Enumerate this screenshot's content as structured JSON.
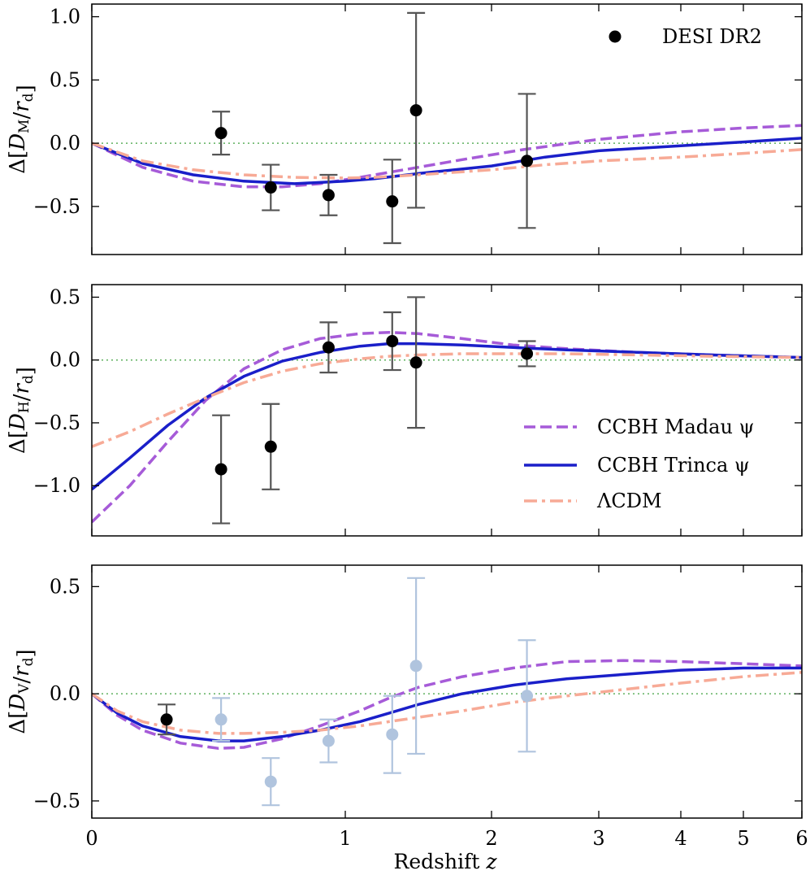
{
  "chart_data": [
    {
      "type": "line",
      "panel": "top",
      "ylabel": {
        "prefix": "Δ",
        "open": "[",
        "var": "D",
        "sub": "M",
        "slash": "/",
        "var2": "r",
        "sub2": "d",
        "close": "]"
      },
      "ylim": [
        -0.88,
        1.1
      ],
      "yticks": [
        1.0,
        0.5,
        0.0,
        -0.5
      ],
      "ytick_labels": [
        "1.0",
        "0.5",
        "0.0",
        "−0.5"
      ],
      "legend": {
        "position": "top-right",
        "entries": [
          {
            "label": "DESI DR2",
            "kind": "marker",
            "color": "#000000"
          }
        ]
      },
      "points": [
        {
          "z": 0.51,
          "y": 0.08,
          "err": 0.17,
          "color": "#000000"
        },
        {
          "z": 0.706,
          "y": -0.35,
          "err": 0.18,
          "color": "#000000"
        },
        {
          "z": 0.934,
          "y": -0.41,
          "err": 0.16,
          "color": "#000000"
        },
        {
          "z": 1.321,
          "y": -0.46,
          "err": 0.33,
          "color": "#000000"
        },
        {
          "z": 1.484,
          "y": 0.26,
          "err": 0.77,
          "color": "#000000"
        },
        {
          "z": 2.33,
          "y": -0.14,
          "err": 0.53,
          "color": "#000000"
        }
      ],
      "series": [
        {
          "name": "CCBH Madau ψ",
          "style": "dashed",
          "color": "#a65bd8",
          "z": [
            0,
            0.2,
            0.4,
            0.6,
            0.75,
            0.9,
            1.1,
            1.4,
            1.8,
            2.3,
            3,
            4,
            5,
            6
          ],
          "values": [
            0,
            -0.19,
            -0.3,
            -0.345,
            -0.345,
            -0.32,
            -0.27,
            -0.21,
            -0.13,
            -0.05,
            0.03,
            0.09,
            0.12,
            0.14
          ]
        },
        {
          "name": "CCBH Trinca ψ",
          "style": "solid",
          "color": "#1a1fc9",
          "z": [
            0,
            0.2,
            0.4,
            0.6,
            0.8,
            1.0,
            1.2,
            1.5,
            2,
            2.5,
            3,
            4,
            5,
            6
          ],
          "values": [
            0,
            -0.16,
            -0.25,
            -0.3,
            -0.32,
            -0.3,
            -0.28,
            -0.24,
            -0.18,
            -0.11,
            -0.06,
            -0.02,
            0.01,
            0.04
          ]
        },
        {
          "name": "ΛCDM",
          "style": "dashdot",
          "color": "#f7aa96",
          "z": [
            0,
            0.2,
            0.4,
            0.6,
            0.8,
            1.0,
            1.2,
            1.5,
            2,
            2.5,
            3,
            4,
            5,
            6
          ],
          "values": [
            0,
            -0.14,
            -0.21,
            -0.25,
            -0.27,
            -0.275,
            -0.27,
            -0.25,
            -0.21,
            -0.17,
            -0.14,
            -0.11,
            -0.08,
            -0.05
          ]
        },
        {
          "name": "zero",
          "style": "dotted",
          "color": "#5fb05f",
          "z": [
            0,
            6
          ],
          "values": [
            0,
            0
          ]
        }
      ]
    },
    {
      "type": "line",
      "panel": "middle",
      "ylabel": {
        "prefix": "Δ",
        "open": "[",
        "var": "D",
        "sub": "H",
        "slash": "/",
        "var2": "r",
        "sub2": "d",
        "close": "]"
      },
      "ylim": [
        -1.4,
        0.6
      ],
      "yticks": [
        0.5,
        0.0,
        -0.5,
        -1.0
      ],
      "ytick_labels": [
        "0.5",
        "0.0",
        "−0.5",
        "−1.0"
      ],
      "legend": {
        "position": "lower-right",
        "entries": [
          {
            "label": "CCBH Madau ψ",
            "kind": "dashed",
            "color": "#a65bd8"
          },
          {
            "label": "CCBH Trinca ψ",
            "kind": "solid",
            "color": "#1a1fc9"
          },
          {
            "label": "ΛCDM",
            "kind": "dashdot",
            "color": "#f7aa96"
          }
        ]
      },
      "points": [
        {
          "z": 0.51,
          "y": -0.87,
          "err": 0.43,
          "color": "#000000"
        },
        {
          "z": 0.706,
          "y": -0.69,
          "err": 0.34,
          "color": "#000000"
        },
        {
          "z": 0.934,
          "y": 0.1,
          "err": 0.2,
          "color": "#000000"
        },
        {
          "z": 1.321,
          "y": 0.15,
          "err": 0.23,
          "color": "#000000"
        },
        {
          "z": 1.484,
          "y": -0.02,
          "err": 0.52,
          "color": "#000000"
        },
        {
          "z": 2.33,
          "y": 0.05,
          "err": 0.1,
          "color": "#000000"
        }
      ],
      "series": [
        {
          "name": "CCBH Madau ψ",
          "style": "dashed",
          "color": "#a65bd8",
          "z": [
            0,
            0.15,
            0.3,
            0.45,
            0.6,
            0.75,
            0.9,
            1.1,
            1.3,
            1.5,
            1.8,
            2.2,
            2.7,
            3.5,
            4.5,
            6
          ],
          "values": [
            -1.29,
            -1.0,
            -0.65,
            -0.32,
            -0.07,
            0.08,
            0.17,
            0.21,
            0.22,
            0.21,
            0.17,
            0.12,
            0.09,
            0.06,
            0.04,
            0.02
          ]
        },
        {
          "name": "CCBH Trinca ψ",
          "style": "solid",
          "color": "#1a1fc9",
          "z": [
            0,
            0.15,
            0.3,
            0.45,
            0.6,
            0.75,
            0.9,
            1.1,
            1.3,
            1.5,
            1.8,
            2.2,
            2.7,
            3.5,
            4.5,
            6
          ],
          "values": [
            -1.03,
            -0.78,
            -0.52,
            -0.3,
            -0.13,
            -0.01,
            0.06,
            0.11,
            0.13,
            0.13,
            0.12,
            0.1,
            0.08,
            0.06,
            0.04,
            0.02
          ]
        },
        {
          "name": "ΛCDM",
          "style": "dashdot",
          "color": "#f7aa96",
          "z": [
            0,
            0.15,
            0.3,
            0.45,
            0.6,
            0.75,
            0.9,
            1.1,
            1.3,
            1.5,
            1.8,
            2.2,
            2.7,
            3.5,
            4.5,
            6
          ],
          "values": [
            -0.69,
            -0.57,
            -0.43,
            -0.3,
            -0.18,
            -0.09,
            -0.03,
            0.01,
            0.03,
            0.04,
            0.05,
            0.05,
            0.05,
            0.04,
            0.03,
            0.02
          ]
        },
        {
          "name": "zero",
          "style": "dotted",
          "color": "#5fb05f",
          "z": [
            0,
            6
          ],
          "values": [
            0,
            0
          ]
        }
      ]
    },
    {
      "type": "line",
      "panel": "bottom",
      "ylabel": {
        "prefix": "Δ",
        "open": "[",
        "var": "D",
        "sub": "V",
        "slash": "/",
        "var2": "r",
        "sub2": "d",
        "close": "]"
      },
      "ylim": [
        -0.58,
        0.6
      ],
      "yticks": [
        0.5,
        0.0,
        -0.5
      ],
      "ytick_labels": [
        "0.5",
        "0.0",
        "−0.5"
      ],
      "xlabel": "Redshift z",
      "xtick_labels": [
        "0",
        "1",
        "2",
        "3",
        "4",
        "5",
        "6"
      ],
      "points": [
        {
          "z": 0.295,
          "y": -0.12,
          "err": 0.07,
          "color": "#000000"
        },
        {
          "z": 0.51,
          "y": -0.12,
          "err": 0.1,
          "color": "#b0c4de"
        },
        {
          "z": 0.706,
          "y": -0.41,
          "err": 0.11,
          "color": "#b0c4de"
        },
        {
          "z": 0.934,
          "y": -0.22,
          "err": 0.1,
          "color": "#b0c4de"
        },
        {
          "z": 1.321,
          "y": -0.19,
          "err": 0.18,
          "color": "#b0c4de"
        },
        {
          "z": 1.484,
          "y": 0.13,
          "err": 0.41,
          "color": "#b0c4de"
        },
        {
          "z": 2.33,
          "y": -0.01,
          "err": 0.26,
          "color": "#b0c4de"
        }
      ],
      "series": [
        {
          "name": "CCBH Madau ψ",
          "style": "dashed",
          "color": "#a65bd8",
          "z": [
            0,
            0.1,
            0.2,
            0.35,
            0.5,
            0.6,
            0.75,
            0.9,
            1.1,
            1.3,
            1.5,
            1.8,
            2.2,
            2.7,
            3.3,
            4,
            5,
            6
          ],
          "values": [
            0,
            -0.1,
            -0.17,
            -0.23,
            -0.255,
            -0.25,
            -0.21,
            -0.15,
            -0.08,
            -0.02,
            0.03,
            0.08,
            0.12,
            0.15,
            0.155,
            0.15,
            0.14,
            0.13
          ]
        },
        {
          "name": "CCBH Trinca ψ",
          "style": "solid",
          "color": "#1a1fc9",
          "z": [
            0,
            0.1,
            0.2,
            0.35,
            0.5,
            0.6,
            0.75,
            0.9,
            1.1,
            1.3,
            1.5,
            1.8,
            2.2,
            2.7,
            3.3,
            4,
            5,
            6
          ],
          "values": [
            0,
            -0.09,
            -0.15,
            -0.2,
            -0.22,
            -0.22,
            -0.2,
            -0.17,
            -0.13,
            -0.09,
            -0.05,
            0,
            0.04,
            0.07,
            0.09,
            0.11,
            0.12,
            0.12
          ]
        },
        {
          "name": "ΛCDM",
          "style": "dashdot",
          "color": "#f7aa96",
          "z": [
            0,
            0.1,
            0.2,
            0.35,
            0.5,
            0.6,
            0.75,
            0.9,
            1.1,
            1.3,
            1.5,
            1.8,
            2.2,
            2.7,
            3.3,
            4,
            5,
            6
          ],
          "values": [
            0,
            -0.08,
            -0.13,
            -0.17,
            -0.185,
            -0.185,
            -0.18,
            -0.17,
            -0.15,
            -0.13,
            -0.11,
            -0.08,
            -0.04,
            -0.01,
            0.02,
            0.05,
            0.08,
            0.1
          ]
        },
        {
          "name": "zero",
          "style": "dotted",
          "color": "#5fb05f",
          "z": [
            0,
            6
          ],
          "values": [
            0,
            0
          ]
        }
      ]
    }
  ]
}
